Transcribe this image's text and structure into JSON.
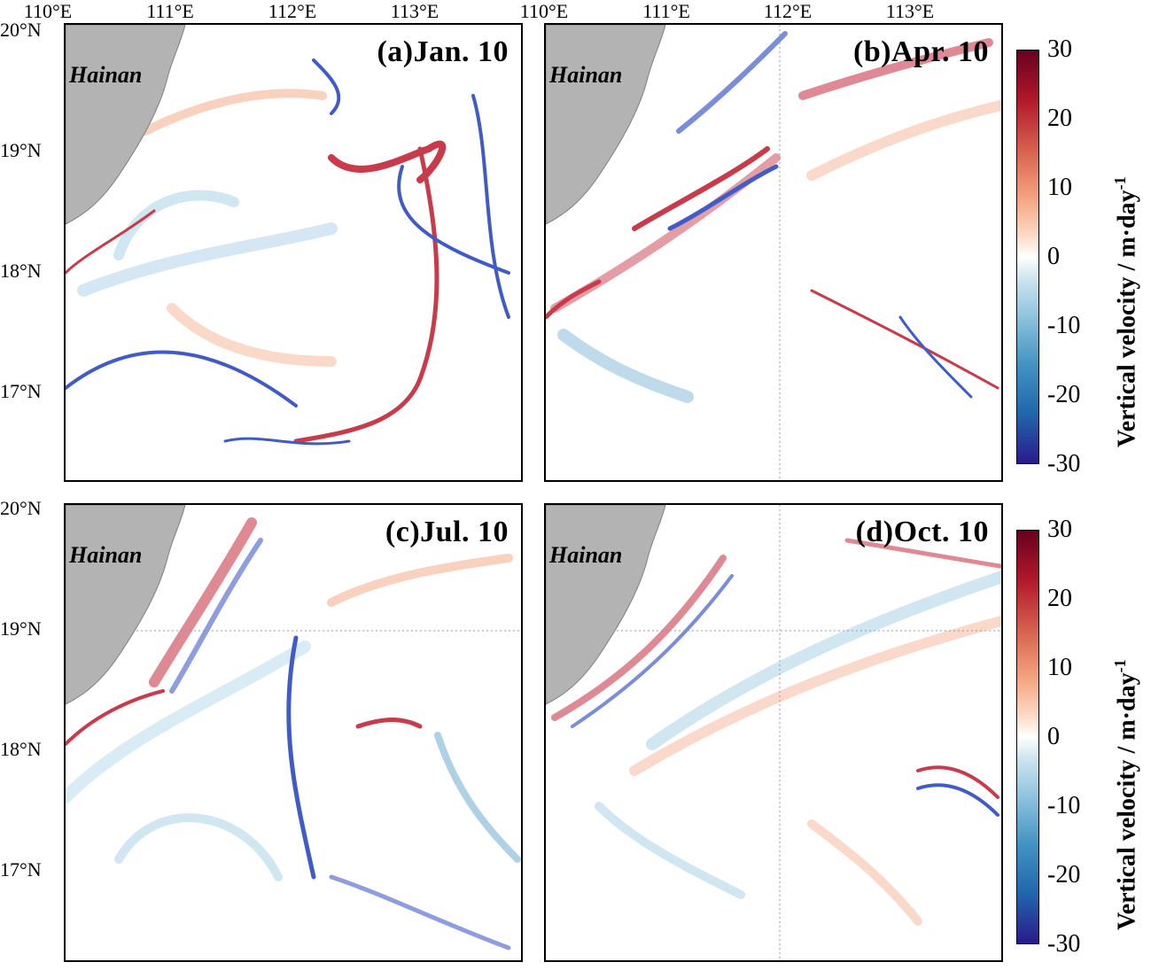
{
  "lon_ticks": [
    "110°E",
    "111°E",
    "112°E",
    "113°E"
  ],
  "lat_ticks": [
    "20°N",
    "19°N",
    "18°N",
    "17°N"
  ],
  "island_label": "Hainan",
  "panels": [
    {
      "id": "a",
      "title": "(a)Jan. 10"
    },
    {
      "id": "b",
      "title": "(b)Apr. 10"
    },
    {
      "id": "c",
      "title": "(c)Jul. 10"
    },
    {
      "id": "d",
      "title": "(d)Oct. 10"
    }
  ],
  "colorbar": {
    "title": "Vertical velocity / m·day",
    "title_exponent": "-1",
    "ticks": [
      "30",
      "20",
      "10",
      "0",
      "-10",
      "-20",
      "-30"
    ],
    "range": [
      -30,
      30
    ]
  },
  "colors": {
    "land": "#b3b3b3",
    "upwelling": "#c0182b",
    "downwelling": "#1f3fbf",
    "neutral": "#ffffff"
  }
}
